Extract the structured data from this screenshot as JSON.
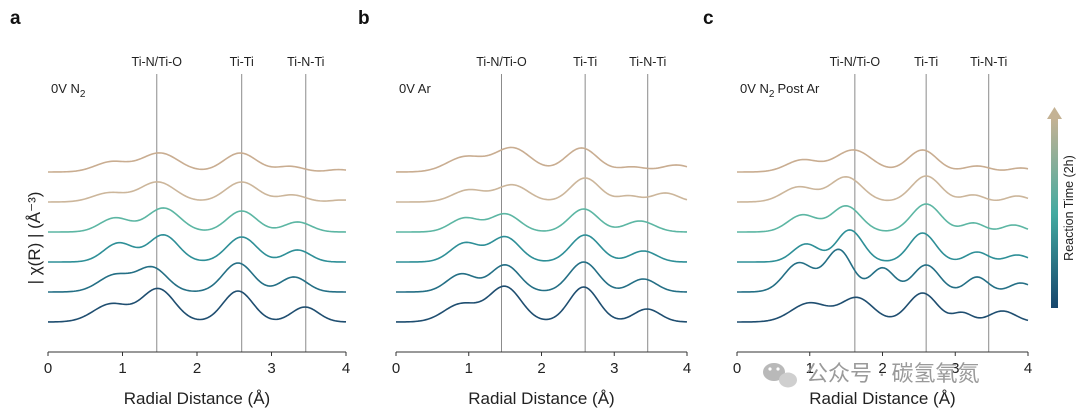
{
  "figure": {
    "ylabel": "| χ(R) | (Å⁻³)",
    "colorbar_label": "Reaction Time (2h)",
    "colors": {
      "curves": [
        "#c9ad91",
        "#ccb69b",
        "#5cb6a3",
        "#2e8f97",
        "#246f85",
        "#1f4e70"
      ],
      "ref_line": "#8a8a8a",
      "colorbar_top": "#c4b294",
      "colorbar_mid": "#43aaa0",
      "colorbar_bottom": "#16456c"
    },
    "watermark": "公众号 · 碳氢氧氮"
  },
  "chart_data": [
    {
      "type": "line",
      "panel": "a",
      "condition_main": "0V N",
      "condition_sub": "2",
      "condition_tail": "",
      "xlabel": "Radial Distance (Å)",
      "xlim": [
        0,
        4
      ],
      "x_ticks": [
        "0",
        "1",
        "2",
        "3",
        "4"
      ],
      "references": [
        {
          "label": "Ti-N/Ti-O",
          "x": 1.46
        },
        {
          "label": "Ti-Ti",
          "x": 2.6
        },
        {
          "label": "Ti-N-Ti",
          "x": 3.46
        }
      ],
      "series": [
        {
          "offset": 5.0,
          "peaks": [
            [
              0.85,
              0.5,
              0.22
            ],
            [
              1.5,
              0.95,
              0.25
            ],
            [
              2.58,
              0.95,
              0.22
            ],
            [
              3.25,
              0.28,
              0.18
            ],
            [
              3.9,
              0.12,
              0.15
            ]
          ]
        },
        {
          "offset": 4.0,
          "peaks": [
            [
              0.82,
              0.45,
              0.22
            ],
            [
              1.47,
              1.0,
              0.24
            ],
            [
              2.6,
              1.0,
              0.22
            ],
            [
              3.28,
              0.35,
              0.18
            ],
            [
              3.95,
              0.1,
              0.15
            ]
          ]
        },
        {
          "offset": 3.0,
          "peaks": [
            [
              0.9,
              0.7,
              0.2
            ],
            [
              1.55,
              1.2,
              0.22
            ],
            [
              2.6,
              1.05,
              0.2
            ],
            [
              3.35,
              0.5,
              0.18
            ]
          ]
        },
        {
          "offset": 2.0,
          "peaks": [
            [
              0.95,
              0.95,
              0.2
            ],
            [
              1.55,
              1.35,
              0.2
            ],
            [
              2.6,
              1.25,
              0.2
            ],
            [
              3.35,
              0.6,
              0.17
            ]
          ]
        },
        {
          "offset": 1.0,
          "peaks": [
            [
              0.9,
              0.85,
              0.22
            ],
            [
              1.4,
              1.2,
              0.2
            ],
            [
              2.55,
              1.45,
              0.2
            ],
            [
              3.3,
              0.75,
              0.18
            ]
          ]
        },
        {
          "offset": 0.0,
          "peaks": [
            [
              0.85,
              0.9,
              0.24
            ],
            [
              1.48,
              1.65,
              0.22
            ],
            [
              2.55,
              1.55,
              0.2
            ],
            [
              3.45,
              0.75,
              0.18
            ]
          ]
        }
      ]
    },
    {
      "type": "line",
      "panel": "b",
      "condition_main": "0V Ar",
      "condition_sub": "",
      "condition_tail": "",
      "xlabel": "Radial Distance (Å)",
      "xlim": [
        0,
        4
      ],
      "x_ticks": [
        "0",
        "1",
        "2",
        "3",
        "4"
      ],
      "references": [
        {
          "label": "Ti-N/Ti-O",
          "x": 1.45
        },
        {
          "label": "Ti-Ti",
          "x": 2.6
        },
        {
          "label": "Ti-N-Ti",
          "x": 3.46
        }
      ],
      "series": [
        {
          "offset": 5.0,
          "peaks": [
            [
              0.95,
              0.75,
              0.25
            ],
            [
              1.6,
              1.2,
              0.25
            ],
            [
              2.55,
              1.2,
              0.22
            ],
            [
              3.25,
              0.25,
              0.18
            ],
            [
              3.85,
              0.35,
              0.2
            ]
          ]
        },
        {
          "offset": 4.0,
          "peaks": [
            [
              1.0,
              0.6,
              0.22
            ],
            [
              1.6,
              0.85,
              0.22
            ],
            [
              2.6,
              1.2,
              0.2
            ],
            [
              3.2,
              0.3,
              0.15
            ],
            [
              3.7,
              0.45,
              0.18
            ]
          ]
        },
        {
          "offset": 3.0,
          "peaks": [
            [
              0.95,
              0.7,
              0.2
            ],
            [
              1.5,
              0.9,
              0.2
            ],
            [
              2.58,
              1.15,
              0.2
            ],
            [
              3.35,
              0.55,
              0.2
            ]
          ]
        },
        {
          "offset": 2.0,
          "peaks": [
            [
              0.95,
              0.95,
              0.2
            ],
            [
              1.5,
              1.25,
              0.2
            ],
            [
              2.6,
              1.35,
              0.2
            ],
            [
              3.4,
              0.55,
              0.18
            ]
          ]
        },
        {
          "offset": 1.0,
          "peaks": [
            [
              0.9,
              0.9,
              0.2
            ],
            [
              1.5,
              1.35,
              0.2
            ],
            [
              2.58,
              1.5,
              0.2
            ],
            [
              3.4,
              0.65,
              0.18
            ]
          ]
        },
        {
          "offset": 0.0,
          "peaks": [
            [
              0.9,
              0.9,
              0.24
            ],
            [
              1.5,
              1.75,
              0.22
            ],
            [
              2.58,
              1.75,
              0.2
            ],
            [
              3.45,
              0.65,
              0.18
            ]
          ]
        }
      ]
    },
    {
      "type": "line",
      "panel": "c",
      "condition_main": "0V N",
      "condition_sub": "2",
      "condition_tail": "Post Ar",
      "xlabel": "Radial Distance (Å)",
      "xlim": [
        0,
        4
      ],
      "x_ticks": [
        "0",
        "1",
        "2",
        "3",
        "4"
      ],
      "references": [
        {
          "label": "Ti-N/Ti-O",
          "x": 1.62
        },
        {
          "label": "Ti-Ti",
          "x": 2.6
        },
        {
          "label": "Ti-N-Ti",
          "x": 3.46
        }
      ],
      "series": [
        {
          "offset": 5.0,
          "peaks": [
            [
              0.9,
              0.6,
              0.22
            ],
            [
              1.6,
              1.1,
              0.25
            ],
            [
              2.55,
              1.1,
              0.2
            ],
            [
              3.3,
              0.3,
              0.18
            ],
            [
              3.9,
              0.2,
              0.15
            ]
          ]
        },
        {
          "offset": 4.0,
          "peaks": [
            [
              0.85,
              0.75,
              0.22
            ],
            [
              1.5,
              1.25,
              0.22
            ],
            [
              2.6,
              1.3,
              0.2
            ],
            [
              3.25,
              0.35,
              0.15
            ],
            [
              3.85,
              0.3,
              0.15
            ]
          ]
        },
        {
          "offset": 3.0,
          "peaks": [
            [
              0.9,
              0.85,
              0.2
            ],
            [
              1.5,
              1.3,
              0.2
            ],
            [
              2.6,
              1.4,
              0.2
            ],
            [
              3.25,
              0.45,
              0.15
            ],
            [
              3.8,
              0.35,
              0.15
            ]
          ]
        },
        {
          "offset": 2.0,
          "peaks": [
            [
              0.95,
              0.9,
              0.18
            ],
            [
              1.55,
              1.6,
              0.18
            ],
            [
              2.55,
              1.45,
              0.18
            ],
            [
              3.3,
              0.5,
              0.15
            ],
            [
              3.85,
              0.35,
              0.15
            ]
          ]
        },
        {
          "offset": 1.0,
          "peaks": [
            [
              0.85,
              1.45,
              0.2
            ],
            [
              1.4,
              2.1,
              0.18
            ],
            [
              2.0,
              1.2,
              0.16
            ],
            [
              2.6,
              1.35,
              0.18
            ],
            [
              3.3,
              0.75,
              0.15
            ],
            [
              3.9,
              0.45,
              0.15
            ]
          ]
        },
        {
          "offset": 0.0,
          "peaks": [
            [
              1.0,
              0.95,
              0.25
            ],
            [
              1.65,
              1.2,
              0.22
            ],
            [
              2.55,
              1.45,
              0.2
            ],
            [
              3.1,
              0.45,
              0.13
            ],
            [
              3.65,
              0.55,
              0.18
            ]
          ]
        }
      ]
    }
  ]
}
